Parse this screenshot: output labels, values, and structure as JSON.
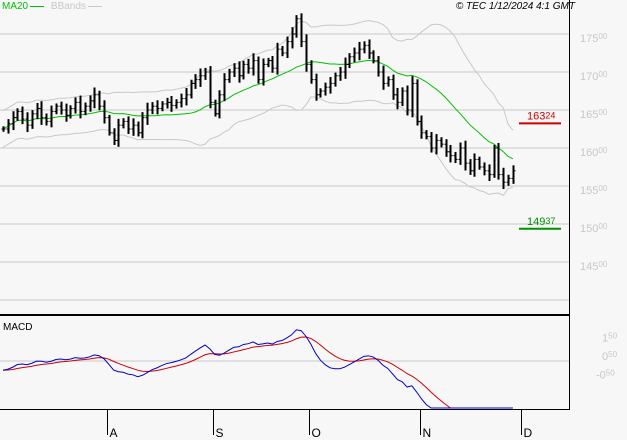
{
  "header": {
    "legend": [
      {
        "name": "MA20",
        "color": "#00c000"
      },
      {
        "name": "BBands",
        "color": "#c8c8c8"
      }
    ],
    "copyright": "© TEC 1/12/2024 4:1 GMT"
  },
  "chart_data": [
    {
      "type": "ohlc-bar",
      "title": "",
      "y_ticks": [
        {
          "main": "175",
          "sup": "00",
          "value": 175
        },
        {
          "main": "170",
          "sup": "00",
          "value": 170
        },
        {
          "main": "165",
          "sup": "00",
          "value": 165
        },
        {
          "main": "160",
          "sup": "00",
          "value": 160
        },
        {
          "main": "155",
          "sup": "00",
          "value": 155
        },
        {
          "main": "150",
          "sup": "00",
          "value": 150
        },
        {
          "main": "145",
          "sup": "00",
          "value": 145
        }
      ],
      "ylim": [
        142,
        179
      ],
      "grid": true,
      "x_ticks": [
        {
          "label": "A",
          "index": 21
        },
        {
          "label": "S",
          "index": 43
        },
        {
          "label": "O",
          "index": 63
        },
        {
          "label": "N",
          "index": 86
        },
        {
          "label": "D",
          "index": 107
        }
      ],
      "close": [
        162.5,
        163.2,
        164.0,
        164.8,
        163.8,
        163.0,
        164.5,
        165.2,
        164.0,
        163.5,
        164.8,
        165.5,
        165.0,
        164.3,
        165.2,
        166.0,
        164.8,
        165.5,
        166.2,
        167.0,
        165.5,
        164.0,
        162.0,
        161.0,
        163.0,
        163.5,
        162.5,
        163.0,
        162.0,
        164.0,
        165.0,
        165.5,
        165.2,
        165.8,
        166.0,
        165.6,
        166.0,
        166.5,
        167.0,
        168.5,
        169.0,
        169.5,
        170.0,
        166.0,
        164.5,
        167.0,
        169.0,
        170.0,
        170.5,
        169.5,
        171.0,
        170.5,
        171.5,
        169.0,
        171.0,
        171.5,
        170.5,
        173.0,
        172.5,
        174.0,
        175.0,
        177.0,
        174.0,
        171.0,
        169.0,
        167.0,
        167.5,
        168.0,
        168.5,
        169.5,
        170.0,
        171.0,
        172.0,
        172.5,
        173.0,
        173.5,
        172.5,
        171.5,
        170.0,
        168.5,
        169.0,
        167.0,
        166.0,
        167.5,
        165.0,
        168.5,
        163.5,
        162.0,
        161.5,
        160.0,
        161.0,
        160.5,
        159.5,
        159.0,
        158.5,
        160.0,
        158.0,
        157.0,
        158.5,
        157.5,
        157.0,
        156.5,
        160.0,
        156.5,
        155.5,
        156.0,
        157.0
      ],
      "indicators": [
        "MA20",
        "BBands"
      ],
      "levels": [
        {
          "value": 163.24,
          "main": "163",
          "sup": "24",
          "color": "#cc0000"
        },
        {
          "value": 149.37,
          "main": "149",
          "sup": "37",
          "color": "#009000"
        }
      ]
    },
    {
      "type": "line",
      "title": "MACD",
      "y_ticks": [
        {
          "main": "1",
          "sup": "50",
          "value": 1.5
        },
        {
          "main": "0",
          "sup": "50",
          "value": 0.5
        },
        {
          "main": "-0",
          "sup": "50",
          "value": -0.5
        }
      ],
      "series": [
        {
          "key": "macd",
          "color": "#0000cc"
        },
        {
          "key": "signal",
          "color": "#cc0000"
        }
      ]
    }
  ]
}
